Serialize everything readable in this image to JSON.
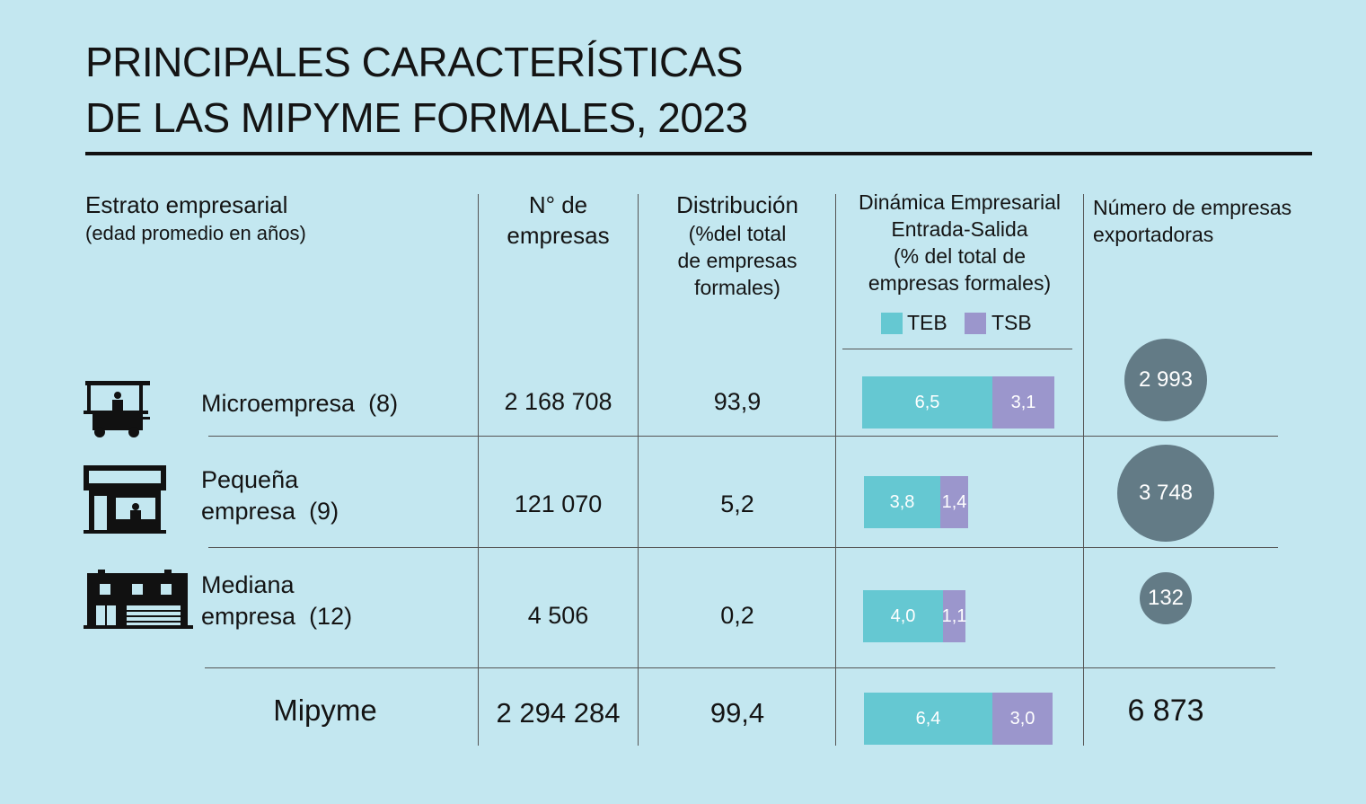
{
  "title": {
    "line1": "PRINCIPALES CARACTERÍSTICAS",
    "line2": "DE LAS MIPYME FORMALES, 2023"
  },
  "headers": {
    "estrato_line1": "Estrato empresarial",
    "estrato_line2": "(edad promedio en años)",
    "n_line1": "N° de",
    "n_line2": "empresas",
    "dist_line1": "Distribución",
    "dist_line2": "(%del total",
    "dist_line3": "de empresas",
    "dist_line4": "formales)",
    "din_line1": "Dinámica Empresarial",
    "din_line2": "Entrada-Salida",
    "din_line3": "(% del total de",
    "din_line4": "empresas formales)",
    "exp_line1": "Número de empresas",
    "exp_line2": "exportadoras"
  },
  "legend": {
    "teb": "TEB",
    "tsb": "TSB",
    "teb_color": "#65c8d2",
    "tsb_color": "#9b96cc"
  },
  "rows": [
    {
      "label1": "Microempresa",
      "label2": "",
      "age": "(8)",
      "n": "2 168 708",
      "dist": "93,9",
      "teb": "6,5",
      "tsb": "3,1",
      "exp": "2 993",
      "icon": "food-cart-icon"
    },
    {
      "label1": "Pequeña",
      "label2": "empresa",
      "age": "(9)",
      "n": "121 070",
      "dist": "5,2",
      "teb": "3,8",
      "tsb": "1,4",
      "exp": "3 748",
      "icon": "shop-icon"
    },
    {
      "label1": "Mediana",
      "label2": "empresa",
      "age": "(12)",
      "n": "4 506",
      "dist": "0,2",
      "teb": "4,0",
      "tsb": "1,1",
      "exp": "132",
      "icon": "building-icon"
    }
  ],
  "total": {
    "label": "Mipyme",
    "n": "2 294 284",
    "dist": "99,4",
    "teb": "6,4",
    "tsb": "3,0",
    "exp": "6 873"
  },
  "chart_data": {
    "type": "table",
    "title": "PRINCIPALES CARACTERÍSTICAS DE LAS MIPYME FORMALES, 2023",
    "columns": [
      "Estrato empresarial (edad promedio en años)",
      "N° de empresas",
      "Distribución (%del total de empresas formales)",
      "TEB",
      "TSB",
      "Número de empresas exportadoras"
    ],
    "categories": [
      "Microempresa (8)",
      "Pequeña empresa (9)",
      "Mediana empresa (12)",
      "Mipyme"
    ],
    "series": [
      {
        "name": "N° de empresas",
        "values": [
          2168708,
          121070,
          4506,
          2294284
        ]
      },
      {
        "name": "Distribución",
        "values": [
          93.9,
          5.2,
          0.2,
          99.4
        ]
      },
      {
        "name": "TEB",
        "values": [
          6.5,
          3.8,
          4.0,
          6.4
        ]
      },
      {
        "name": "TSB",
        "values": [
          3.1,
          1.4,
          1.1,
          3.0
        ]
      },
      {
        "name": "Número de empresas exportadoras",
        "values": [
          2993,
          3748,
          132,
          6873
        ]
      }
    ]
  }
}
